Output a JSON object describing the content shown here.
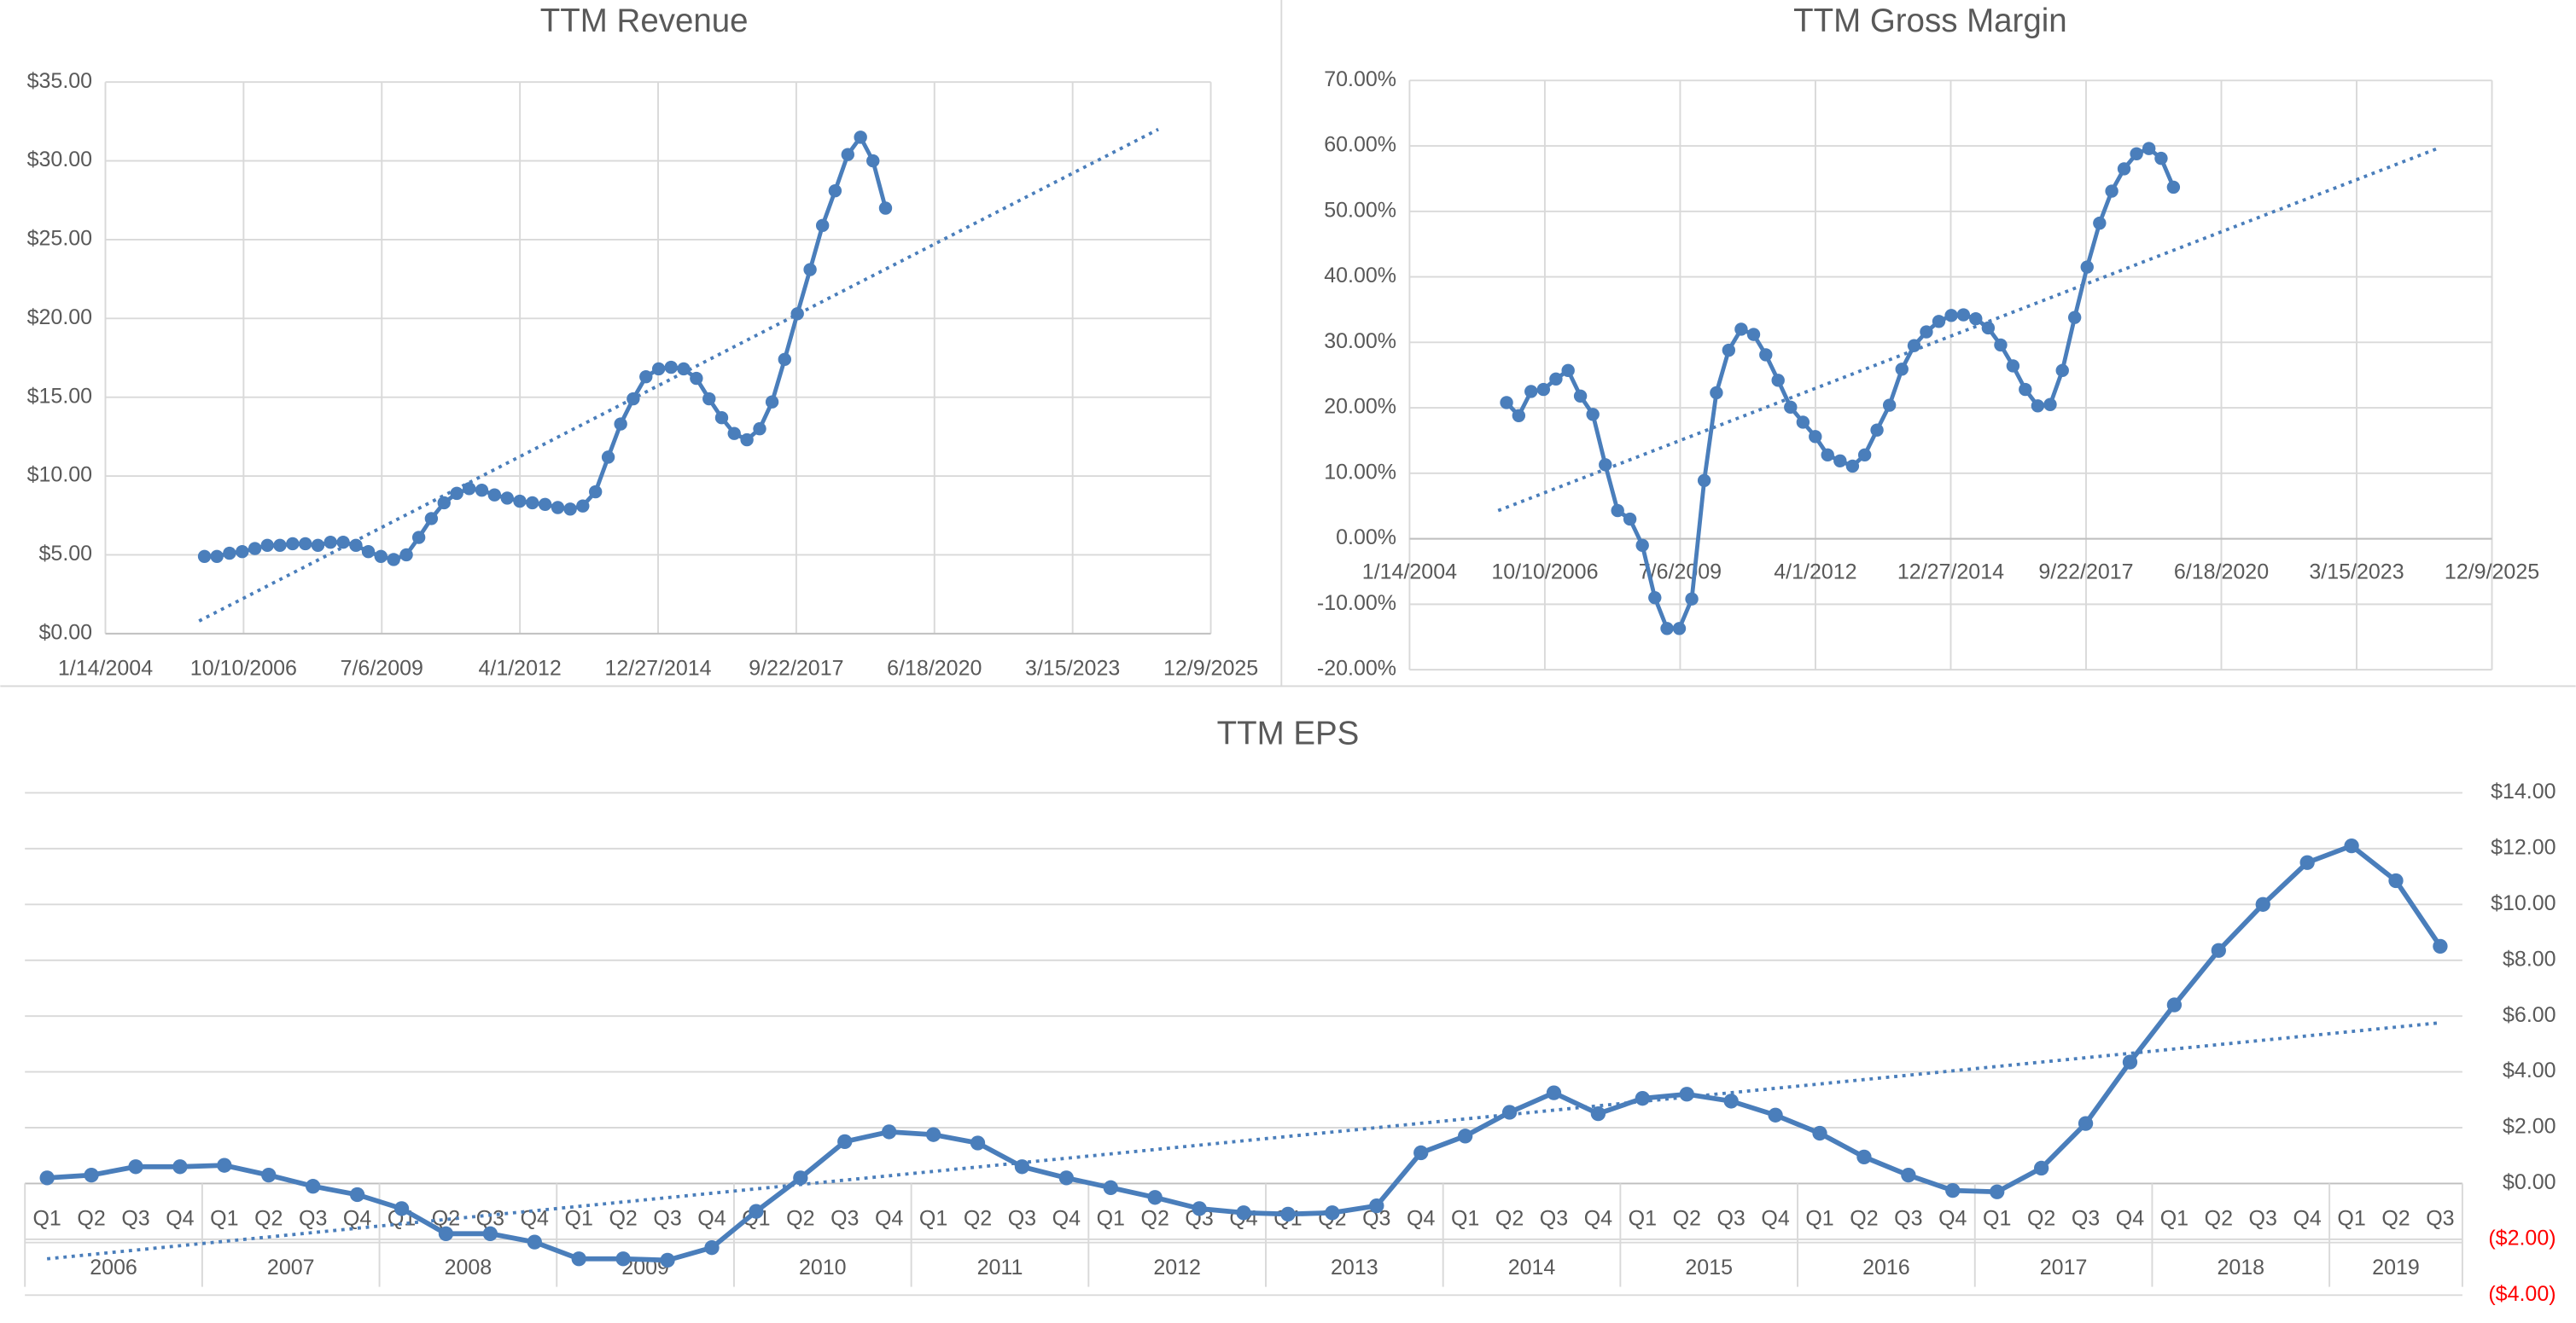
{
  "chart_data": [
    {
      "type": "line",
      "title": "TTM Revenue",
      "x": [
        38717,
        38807,
        38898,
        38990,
        39082,
        39172,
        39263,
        39355,
        39447,
        39538,
        39629,
        39721,
        39813,
        39903,
        39994,
        40086,
        40178,
        40268,
        40359,
        40451,
        40543,
        40633,
        40724,
        40816,
        40908,
        40999,
        41090,
        41182,
        41274,
        41364,
        41455,
        41547,
        41639,
        41729,
        41820,
        41912,
        42004,
        42094,
        42185,
        42277,
        42369,
        42460,
        42551,
        42643,
        42735,
        42825,
        42916,
        43008,
        43100,
        43190,
        43281,
        43373,
        43465,
        43555,
        43646
      ],
      "series": [
        {
          "color": "#4a7ebb",
          "values": [
            4.9,
            4.9,
            5.1,
            5.2,
            5.4,
            5.6,
            5.6,
            5.7,
            5.7,
            5.6,
            5.8,
            5.8,
            5.6,
            5.2,
            4.9,
            4.7,
            5.0,
            6.1,
            7.3,
            8.3,
            8.9,
            9.2,
            9.1,
            8.8,
            8.6,
            8.4,
            8.3,
            8.2,
            8.0,
            7.9,
            8.1,
            9.0,
            11.2,
            13.3,
            14.9,
            16.3,
            16.8,
            16.9,
            16.8,
            16.2,
            14.9,
            13.7,
            12.7,
            12.3,
            13.0,
            14.7,
            17.4,
            20.3,
            23.1,
            25.9,
            28.1,
            30.4,
            31.5,
            30.0,
            27.0
          ]
        }
      ],
      "trendline": {
        "x": [
          38678,
          45620
        ],
        "values": [
          0.8,
          32.0
        ]
      },
      "xlim": [
        38000,
        46000
      ],
      "xticks": [
        {
          "value": 38000,
          "label": "1/14/2004"
        },
        {
          "value": 39000,
          "label": "10/10/2006"
        },
        {
          "value": 40000,
          "label": "7/6/2009"
        },
        {
          "value": 41000,
          "label": "4/1/2012"
        },
        {
          "value": 42000,
          "label": "12/27/2014"
        },
        {
          "value": 43000,
          "label": "9/22/2017"
        },
        {
          "value": 44000,
          "label": "6/18/2020"
        },
        {
          "value": 45000,
          "label": "3/15/2023"
        },
        {
          "value": 46000,
          "label": "12/9/2025"
        }
      ],
      "ylim": [
        0,
        35
      ],
      "yticks": [
        {
          "value": 0,
          "label": "$0.00"
        },
        {
          "value": 5,
          "label": "$5.00"
        },
        {
          "value": 10,
          "label": "$10.00"
        },
        {
          "value": 15,
          "label": "$15.00"
        },
        {
          "value": 20,
          "label": "$20.00"
        },
        {
          "value": 25,
          "label": "$25.00"
        },
        {
          "value": 30,
          "label": "$30.00"
        },
        {
          "value": 35,
          "label": "$35.00"
        }
      ],
      "grid": true
    },
    {
      "type": "line",
      "title": "TTM Gross Margin",
      "x": [
        38717,
        38807,
        38898,
        38990,
        39082,
        39172,
        39263,
        39355,
        39447,
        39538,
        39629,
        39721,
        39813,
        39903,
        39994,
        40086,
        40178,
        40268,
        40359,
        40451,
        40543,
        40633,
        40724,
        40816,
        40908,
        40999,
        41090,
        41182,
        41274,
        41364,
        41455,
        41547,
        41639,
        41729,
        41820,
        41912,
        42004,
        42094,
        42185,
        42277,
        42369,
        42460,
        42551,
        42643,
        42735,
        42825,
        42916,
        43008,
        43100,
        43190,
        43281,
        43373,
        43465,
        43555,
        43646
      ],
      "series": [
        {
          "color": "#4a7ebb",
          "values": [
            20.8,
            18.8,
            22.5,
            22.8,
            24.4,
            25.7,
            21.8,
            19.0,
            11.3,
            4.3,
            3.0,
            -1.0,
            -9.0,
            -13.7,
            -13.7,
            -9.2,
            8.9,
            22.3,
            28.8,
            32.0,
            31.2,
            28.1,
            24.2,
            20.1,
            17.8,
            15.6,
            12.8,
            11.9,
            11.1,
            12.8,
            16.6,
            20.4,
            25.9,
            29.5,
            31.6,
            33.2,
            34.1,
            34.2,
            33.6,
            32.2,
            29.6,
            26.4,
            22.8,
            20.3,
            20.5,
            25.7,
            33.8,
            41.5,
            48.2,
            53.1,
            56.5,
            58.8,
            59.6,
            58.1,
            53.7
          ]
        }
      ],
      "trendline": {
        "x": [
          38655,
          45597
        ],
        "values": [
          4.3,
          59.6
        ]
      },
      "xlim": [
        38000,
        46000
      ],
      "xticks": [
        {
          "value": 38000,
          "label": "1/14/2004"
        },
        {
          "value": 39000,
          "label": "10/10/2006"
        },
        {
          "value": 40000,
          "label": "7/6/2009"
        },
        {
          "value": 41000,
          "label": "4/1/2012"
        },
        {
          "value": 42000,
          "label": "12/27/2014"
        },
        {
          "value": 43000,
          "label": "9/22/2017"
        },
        {
          "value": 44000,
          "label": "6/18/2020"
        },
        {
          "value": 45000,
          "label": "3/15/2023"
        },
        {
          "value": 46000,
          "label": "12/9/2025"
        }
      ],
      "ylim": [
        -20,
        70
      ],
      "yticks": [
        {
          "value": -20,
          "label": "-20.00%"
        },
        {
          "value": -10,
          "label": "-10.00%"
        },
        {
          "value": 0,
          "label": "0.00%"
        },
        {
          "value": 10,
          "label": "10.00%"
        },
        {
          "value": 20,
          "label": "20.00%"
        },
        {
          "value": 30,
          "label": "30.00%"
        },
        {
          "value": 40,
          "label": "40.00%"
        },
        {
          "value": 50,
          "label": "50.00%"
        },
        {
          "value": 60,
          "label": "60.00%"
        },
        {
          "value": 70,
          "label": "70.00%"
        }
      ],
      "grid": true
    },
    {
      "type": "category-line",
      "title": "TTM EPS",
      "groups": [
        {
          "name": "2006",
          "categories": [
            "Q1",
            "Q2",
            "Q3",
            "Q4"
          ]
        },
        {
          "name": "2007",
          "categories": [
            "Q1",
            "Q2",
            "Q3",
            "Q4"
          ]
        },
        {
          "name": "2008",
          "categories": [
            "Q1",
            "Q2",
            "Q3",
            "Q4"
          ]
        },
        {
          "name": "2009",
          "categories": [
            "Q1",
            "Q2",
            "Q3",
            "Q4"
          ]
        },
        {
          "name": "2010",
          "categories": [
            "Q1",
            "Q2",
            "Q3",
            "Q4"
          ]
        },
        {
          "name": "2011",
          "categories": [
            "Q1",
            "Q2",
            "Q3",
            "Q4"
          ]
        },
        {
          "name": "2012",
          "categories": [
            "Q1",
            "Q2",
            "Q3",
            "Q4"
          ]
        },
        {
          "name": "2013",
          "categories": [
            "Q1",
            "Q2",
            "Q3",
            "Q4"
          ]
        },
        {
          "name": "2014",
          "categories": [
            "Q1",
            "Q2",
            "Q3",
            "Q4"
          ]
        },
        {
          "name": "2015",
          "categories": [
            "Q1",
            "Q2",
            "Q3",
            "Q4"
          ]
        },
        {
          "name": "2016",
          "categories": [
            "Q1",
            "Q2",
            "Q3",
            "Q4"
          ]
        },
        {
          "name": "2017",
          "categories": [
            "Q1",
            "Q2",
            "Q3",
            "Q4"
          ]
        },
        {
          "name": "2018",
          "categories": [
            "Q1",
            "Q2",
            "Q3",
            "Q4"
          ]
        },
        {
          "name": "2019",
          "categories": [
            "Q1",
            "Q2",
            "Q3"
          ]
        }
      ],
      "series": [
        {
          "color": "#4a7ebb",
          "values": [
            0.2,
            0.3,
            0.6,
            0.6,
            0.65,
            0.3,
            -0.1,
            -0.4,
            -0.9,
            -1.8,
            -1.8,
            -2.1,
            -2.7,
            -2.7,
            -2.75,
            -2.3,
            -1.0,
            0.2,
            1.5,
            1.85,
            1.75,
            1.45,
            0.6,
            0.2,
            -0.15,
            -0.5,
            -0.9,
            -1.05,
            -1.1,
            -1.05,
            -0.8,
            1.1,
            1.7,
            2.55,
            3.25,
            2.5,
            3.05,
            3.2,
            2.95,
            2.45,
            1.8,
            0.95,
            0.3,
            -0.25,
            -0.3,
            0.55,
            2.15,
            4.35,
            6.4,
            8.35,
            10.0,
            11.5,
            12.1,
            10.85,
            8.5
          ]
        }
      ],
      "trendline": {
        "values": [
          -2.7,
          5.76
        ]
      },
      "ylim": [
        -4,
        14
      ],
      "yticks": [
        {
          "value": -4,
          "label": "($4.00)"
        },
        {
          "value": -2,
          "label": "($2.00)"
        },
        {
          "value": 0,
          "label": "$0.00"
        },
        {
          "value": 2,
          "label": "$2.00"
        },
        {
          "value": 4,
          "label": "$4.00"
        },
        {
          "value": 6,
          "label": "$6.00"
        },
        {
          "value": 8,
          "label": "$8.00"
        },
        {
          "value": 10,
          "label": "$10.00"
        },
        {
          "value": 12,
          "label": "$12.00"
        },
        {
          "value": 14,
          "label": "$14.00"
        }
      ],
      "y_axis_side": "right",
      "negative_tick_color": "#ff0000",
      "grid": true
    }
  ]
}
